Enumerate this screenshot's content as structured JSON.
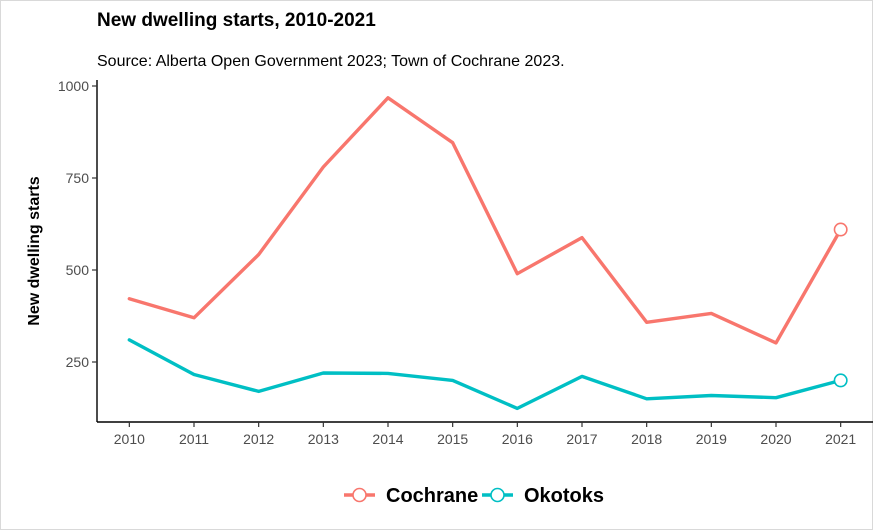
{
  "chart_data": {
    "type": "line",
    "title": "New dwelling starts, 2010-2021",
    "subtitle": "Source: Alberta Open Government 2023; Town of Cochrane 2023.",
    "xlabel": "",
    "ylabel": "New dwelling starts",
    "x": [
      2010,
      2011,
      2012,
      2013,
      2014,
      2015,
      2016,
      2017,
      2018,
      2019,
      2020,
      2021
    ],
    "x_tick_labels": [
      "2010",
      "2011",
      "2012",
      "2013",
      "2014",
      "2015",
      "2016",
      "2017",
      "2018",
      "2019",
      "2020",
      "2021"
    ],
    "y_ticks": [
      250,
      500,
      750,
      1000
    ],
    "y_tick_labels": [
      "250",
      "500",
      "750",
      "1000"
    ],
    "xlim": [
      2009.5,
      2021.5
    ],
    "ylim": [
      88,
      1000
    ],
    "grid": false,
    "legend_position": "bottom",
    "series": [
      {
        "name": "Cochrane",
        "color": "#F8766D",
        "values": [
          422,
          370,
          542,
          780,
          968,
          846,
          490,
          588,
          358,
          382,
          302,
          610
        ]
      },
      {
        "name": "Okotoks",
        "color": "#00BFC4",
        "values": [
          310,
          216,
          170,
          220,
          219,
          200,
          124,
          211,
          150,
          159,
          153,
          200
        ]
      }
    ]
  }
}
